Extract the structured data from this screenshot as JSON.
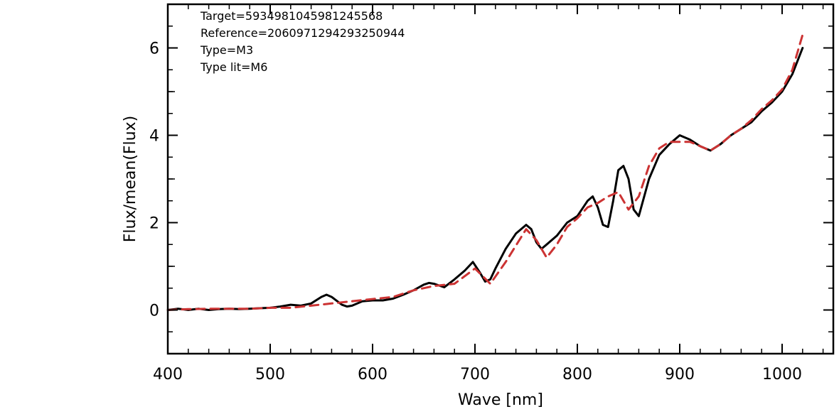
{
  "chart_data": {
    "type": "line",
    "title": "",
    "xlabel": "Wave [nm]",
    "ylabel": "Flux/mean(Flux)",
    "xlim": [
      400,
      1050
    ],
    "ylim": [
      -1,
      7
    ],
    "grid": false,
    "xticks": [
      400,
      500,
      600,
      700,
      800,
      900,
      1000
    ],
    "yticks": [
      0,
      2,
      4,
      6
    ],
    "annotations": [
      "Target=5934981045981245568",
      "Reference=2060971294293250944",
      "Type=M3",
      "Type lit=M6"
    ],
    "series": [
      {
        "style": "solid",
        "color": "#000000",
        "x": [
          400,
          410,
          420,
          430,
          440,
          450,
          460,
          470,
          480,
          490,
          500,
          510,
          520,
          530,
          540,
          550,
          555,
          560,
          570,
          575,
          580,
          590,
          600,
          610,
          620,
          630,
          640,
          650,
          655,
          660,
          670,
          680,
          690,
          698,
          705,
          710,
          715,
          720,
          730,
          740,
          750,
          755,
          760,
          765,
          770,
          780,
          790,
          800,
          810,
          815,
          820,
          825,
          830,
          835,
          840,
          845,
          850,
          855,
          860,
          870,
          880,
          890,
          900,
          910,
          920,
          930,
          940,
          950,
          960,
          970,
          980,
          990,
          1000,
          1010,
          1020
        ],
        "y": [
          0.0,
          0.03,
          0.0,
          0.03,
          0.0,
          0.02,
          0.03,
          0.02,
          0.03,
          0.04,
          0.05,
          0.08,
          0.12,
          0.1,
          0.15,
          0.3,
          0.35,
          0.3,
          0.12,
          0.08,
          0.1,
          0.2,
          0.22,
          0.22,
          0.26,
          0.35,
          0.45,
          0.58,
          0.62,
          0.6,
          0.52,
          0.7,
          0.9,
          1.1,
          0.85,
          0.65,
          0.7,
          0.95,
          1.4,
          1.75,
          1.95,
          1.85,
          1.55,
          1.4,
          1.5,
          1.7,
          2.0,
          2.15,
          2.5,
          2.6,
          2.35,
          1.95,
          1.9,
          2.5,
          3.2,
          3.3,
          3.0,
          2.3,
          2.15,
          3.0,
          3.55,
          3.8,
          4.0,
          3.9,
          3.75,
          3.65,
          3.8,
          4.0,
          4.15,
          4.3,
          4.55,
          4.75,
          5.0,
          5.4,
          6.0
        ]
      },
      {
        "style": "dashed",
        "color": "#cc3333",
        "x": [
          400,
          420,
          440,
          460,
          480,
          500,
          520,
          540,
          560,
          580,
          600,
          620,
          640,
          660,
          680,
          700,
          715,
          730,
          750,
          760,
          770,
          780,
          790,
          800,
          810,
          820,
          830,
          840,
          850,
          860,
          870,
          880,
          890,
          900,
          910,
          920,
          930,
          940,
          950,
          960,
          970,
          980,
          990,
          1000,
          1010,
          1020
        ],
        "y": [
          0.0,
          0.02,
          0.03,
          0.03,
          0.03,
          0.05,
          0.05,
          0.1,
          0.15,
          0.2,
          0.25,
          0.3,
          0.45,
          0.55,
          0.6,
          0.95,
          0.6,
          1.1,
          1.85,
          1.6,
          1.2,
          1.5,
          1.9,
          2.1,
          2.35,
          2.45,
          2.6,
          2.7,
          2.3,
          2.6,
          3.3,
          3.7,
          3.85,
          3.85,
          3.85,
          3.75,
          3.65,
          3.8,
          4.0,
          4.15,
          4.35,
          4.6,
          4.8,
          5.05,
          5.5,
          6.3
        ]
      }
    ]
  }
}
